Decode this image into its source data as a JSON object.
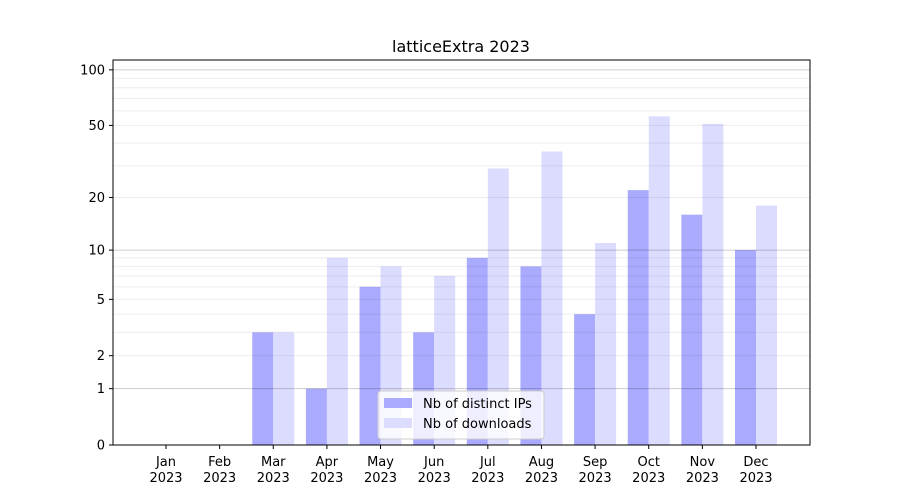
{
  "chart_data": {
    "type": "bar",
    "title": "latticeExtra 2023",
    "xlabel": "",
    "ylabel": "",
    "y_scale": "log(1+y)",
    "ylim": [
      0,
      113
    ],
    "yticks": [
      0,
      1,
      2,
      5,
      10,
      20,
      50,
      100
    ],
    "grid": true,
    "legend_position": "lower center",
    "categories": [
      "Jan\n2023",
      "Feb\n2023",
      "Mar\n2023",
      "Apr\n2023",
      "May\n2023",
      "Jun\n2023",
      "Jul\n2023",
      "Aug\n2023",
      "Sep\n2023",
      "Oct\n2023",
      "Nov\n2023",
      "Dec\n2023"
    ],
    "series": [
      {
        "name": "Nb of distinct IPs",
        "color": "#aaaaff",
        "values": [
          0,
          0,
          3,
          1,
          6,
          3,
          9,
          8,
          4,
          22,
          16,
          10
        ]
      },
      {
        "name": "Nb of downloads",
        "color": "#dcdcff",
        "values": [
          0,
          0,
          3,
          9,
          8,
          7,
          29,
          36,
          11,
          56,
          51,
          18
        ]
      }
    ]
  }
}
